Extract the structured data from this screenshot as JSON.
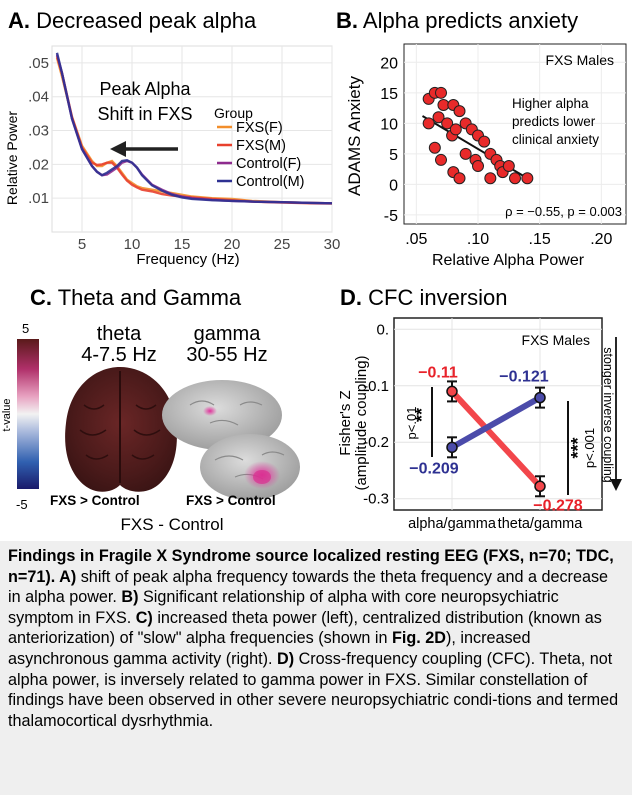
{
  "panels": {
    "a": {
      "letter": "A.",
      "title": "Decreased peak alpha"
    },
    "b": {
      "letter": "B.",
      "title": "Alpha predicts anxiety"
    },
    "c": {
      "letter": "C.",
      "title": "Theta and Gamma"
    },
    "d": {
      "letter": "D.",
      "title": "CFC inversion"
    }
  },
  "colors": {
    "fxs_f": "#f28e2b",
    "fxs_m": "#e8402d",
    "control_f": "#8e2b8e",
    "control_m": "#2e3192",
    "scatter_fill": "#e82a2a",
    "cfc_red": "#f2464b",
    "cfc_blue": "#4b4baa"
  },
  "chart_data": [
    {
      "type": "line",
      "title": "Decreased peak alpha",
      "xlabel": "Frequency (Hz)",
      "ylabel": "Relative Power",
      "xlim": [
        2,
        30
      ],
      "ylim": [
        0.0,
        0.055
      ],
      "xticks": [
        5,
        10,
        15,
        20,
        25,
        30
      ],
      "yticks": [
        ".01",
        ".02",
        ".03",
        ".04",
        ".05"
      ],
      "ytick_values": [
        0.01,
        0.02,
        0.03,
        0.04,
        0.05
      ],
      "annotation": [
        "Peak Alpha",
        "Shift in FXS"
      ],
      "legend_title": "Group",
      "legend_position": "right",
      "x": [
        2.5,
        3,
        4,
        5,
        6,
        6.5,
        7,
        7.5,
        8,
        8.5,
        9,
        9.5,
        10,
        10.5,
        11,
        12,
        13,
        14,
        15,
        16,
        18,
        20,
        22,
        25,
        28,
        30
      ],
      "series": [
        {
          "name": "FXS(F)",
          "color": "#f28e2b",
          "values": [
            0.0515,
            0.046,
            0.034,
            0.0255,
            0.021,
            0.0195,
            0.0195,
            0.0205,
            0.021,
            0.0195,
            0.0175,
            0.0155,
            0.0145,
            0.0135,
            0.013,
            0.0125,
            0.012,
            0.0115,
            0.011,
            0.0105,
            0.01,
            0.0098,
            0.0092,
            0.0088,
            0.0086,
            0.0085
          ]
        },
        {
          "name": "FXS(M)",
          "color": "#e8402d",
          "values": [
            0.052,
            0.047,
            0.034,
            0.025,
            0.0205,
            0.0198,
            0.02,
            0.0205,
            0.0205,
            0.019,
            0.017,
            0.0152,
            0.014,
            0.0132,
            0.0125,
            0.012,
            0.0112,
            0.0108,
            0.0105,
            0.0102,
            0.0098,
            0.0094,
            0.009,
            0.0087,
            0.0085,
            0.0084
          ]
        },
        {
          "name": "Control(F)",
          "color": "#8e2b8e",
          "values": [
            0.0525,
            0.047,
            0.0335,
            0.0245,
            0.0195,
            0.0178,
            0.0168,
            0.017,
            0.018,
            0.019,
            0.0205,
            0.021,
            0.0205,
            0.019,
            0.017,
            0.014,
            0.0125,
            0.0112,
            0.0105,
            0.01,
            0.0095,
            0.0092,
            0.009,
            0.0088,
            0.0086,
            0.0085
          ]
        },
        {
          "name": "Control(M)",
          "color": "#2e3192",
          "values": [
            0.053,
            0.047,
            0.0335,
            0.0245,
            0.0195,
            0.0178,
            0.0168,
            0.0175,
            0.0185,
            0.0195,
            0.021,
            0.0212,
            0.0205,
            0.019,
            0.0168,
            0.0138,
            0.0122,
            0.011,
            0.0102,
            0.0098,
            0.0094,
            0.0092,
            0.009,
            0.0088,
            0.0086,
            0.0085
          ]
        }
      ]
    },
    {
      "type": "scatter",
      "title": "Alpha predicts anxiety",
      "xlabel": "Relative Alpha Power",
      "ylabel": "ADAMS Anxiety",
      "xlim": [
        0.04,
        0.22
      ],
      "ylim": [
        -6.5,
        23
      ],
      "xticks": [
        ".05",
        ".10",
        ".15",
        ".20"
      ],
      "xtick_values": [
        0.05,
        0.1,
        0.15,
        0.2
      ],
      "yticks": [
        -5,
        0,
        5,
        10,
        15,
        20
      ],
      "group_label": "FXS Males",
      "annotation": [
        "Higher alpha",
        "predicts lower",
        "clinical anxiety"
      ],
      "stats": "ρ = −0.55, p = 0.003",
      "fit_line": {
        "x": [
          0.055,
          0.14
        ],
        "y": [
          11.2,
          1.0
        ]
      },
      "points": [
        {
          "x": 0.06,
          "y": 14
        },
        {
          "x": 0.065,
          "y": 15
        },
        {
          "x": 0.07,
          "y": 15
        },
        {
          "x": 0.072,
          "y": 13
        },
        {
          "x": 0.08,
          "y": 13
        },
        {
          "x": 0.085,
          "y": 12
        },
        {
          "x": 0.06,
          "y": 10
        },
        {
          "x": 0.068,
          "y": 11
        },
        {
          "x": 0.075,
          "y": 10
        },
        {
          "x": 0.079,
          "y": 8
        },
        {
          "x": 0.082,
          "y": 9
        },
        {
          "x": 0.09,
          "y": 10
        },
        {
          "x": 0.095,
          "y": 9
        },
        {
          "x": 0.1,
          "y": 8
        },
        {
          "x": 0.105,
          "y": 7
        },
        {
          "x": 0.11,
          "y": 5
        },
        {
          "x": 0.09,
          "y": 5
        },
        {
          "x": 0.098,
          "y": 4
        },
        {
          "x": 0.115,
          "y": 4
        },
        {
          "x": 0.118,
          "y": 3
        },
        {
          "x": 0.12,
          "y": 2
        },
        {
          "x": 0.125,
          "y": 3
        },
        {
          "x": 0.13,
          "y": 1
        },
        {
          "x": 0.14,
          "y": 1
        },
        {
          "x": 0.065,
          "y": 6
        },
        {
          "x": 0.07,
          "y": 4
        },
        {
          "x": 0.08,
          "y": 2
        },
        {
          "x": 0.085,
          "y": 1
        },
        {
          "x": 0.11,
          "y": 1
        },
        {
          "x": 0.1,
          "y": 3
        }
      ]
    },
    {
      "type": "line",
      "title": "CFC inversion",
      "xlabel": "",
      "ylabel": [
        "Fisher's Z",
        "(amplitude coupling)"
      ],
      "ylim": [
        -0.32,
        0.02
      ],
      "yticks": [
        "0.",
        "-0.1",
        "-0.2",
        "-0.3"
      ],
      "ytick_values": [
        0.0,
        -0.1,
        -0.2,
        -0.3
      ],
      "categories": [
        "alpha/gamma",
        "theta/gamma"
      ],
      "group_label": "FXS Males",
      "side_label": "stonger inverse coupling",
      "series": [
        {
          "name": "",
          "color": "#f2464b",
          "values": [
            -0.11,
            -0.278
          ],
          "labels": [
            "−0.11",
            "−0.278"
          ]
        },
        {
          "name": "",
          "color": "#4b4baa",
          "values": [
            -0.209,
            -0.121
          ],
          "labels": [
            "−0.209",
            "−0.121"
          ]
        }
      ],
      "significance": [
        {
          "stars": "**",
          "p": "p<.01"
        },
        {
          "stars": "***",
          "p": "p<.001"
        }
      ]
    }
  ],
  "brain": {
    "theta_label": "theta",
    "theta_band": "4-7.5 Hz",
    "gamma_label": "gamma",
    "gamma_band": "30-55 Hz",
    "colorbar_label": "t-value",
    "colorbar_max": "5",
    "colorbar_min": "-5",
    "theta_contrast": "FXS > Control",
    "gamma_contrast": "FXS > Control",
    "footer": "FXS - Control"
  },
  "caption": {
    "bold_intro": "Findings in Fragile X Syndrome source localized resting EEG (FXS, n=70; TDC, n=71). A)",
    "t1": " shift of peak alpha frequency towards the theta frequency and a decrease in alpha power. ",
    "b_label": "B)",
    "t2": " Significant relationship of alpha with core neuropsychiatric symptom in FXS. ",
    "c_label": "C)",
    "t3": " increased theta power (left), centralized distribution (known as anteriorization) of \"slow\" alpha frequencies (shown in ",
    "fig_ref": "Fig. 2D",
    "t4": "), increased asynchronous gamma activity (right). ",
    "d_label": "D)",
    "t5": " Cross-frequency coupling (CFC). Theta, not alpha power, is inversely related to gamma power in FXS. Similar constellation of findings have been observed in other severe neuropsychiatric condi-tions and termed thalamocortical dysrhythmia."
  }
}
